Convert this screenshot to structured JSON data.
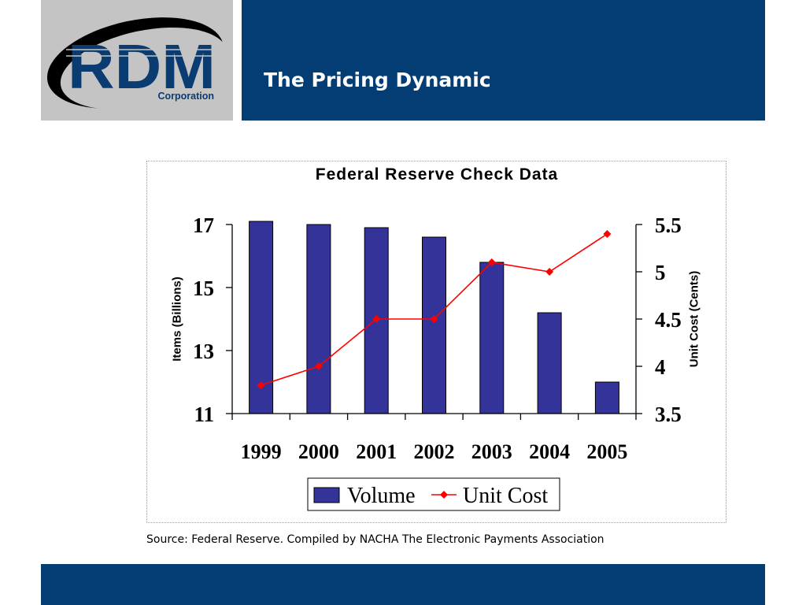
{
  "logo": {
    "wordmark": "RDM",
    "subtext": "Corporation"
  },
  "header": {
    "title": "The Pricing Dynamic"
  },
  "colors": {
    "brand_blue": "#033d74",
    "logo_gray": "#c4c4c4",
    "logo_navy": "#0a3c72"
  },
  "chart_data": {
    "type": "bar",
    "title": "Federal Reserve Check Data",
    "categories": [
      "1999",
      "2000",
      "2001",
      "2002",
      "2003",
      "2004",
      "2005"
    ],
    "series": [
      {
        "name": "Volume",
        "type": "bar",
        "axis": "left",
        "color": "#333399",
        "values": [
          17.1,
          17.0,
          16.9,
          16.6,
          15.8,
          14.2,
          12.0
        ]
      },
      {
        "name": "Unit Cost",
        "type": "line",
        "axis": "right",
        "color": "#ff0000",
        "marker": "diamond",
        "values": [
          3.8,
          4.0,
          4.5,
          4.5,
          5.1,
          5.0,
          5.4
        ]
      }
    ],
    "ylabel": "Items (Billions)",
    "ylabel_right": "Unit Cost (Cents)",
    "ylim": [
      11,
      17
    ],
    "yticks": [
      17,
      15,
      13,
      11
    ],
    "ylim_right": [
      3.5,
      5.5
    ],
    "yticks_right": [
      5.5,
      5,
      4.5,
      4,
      3.5
    ],
    "grid": false,
    "legend": "bottom"
  },
  "source": "Source: Federal Reserve. Compiled by NACHA The Electronic Payments Association"
}
